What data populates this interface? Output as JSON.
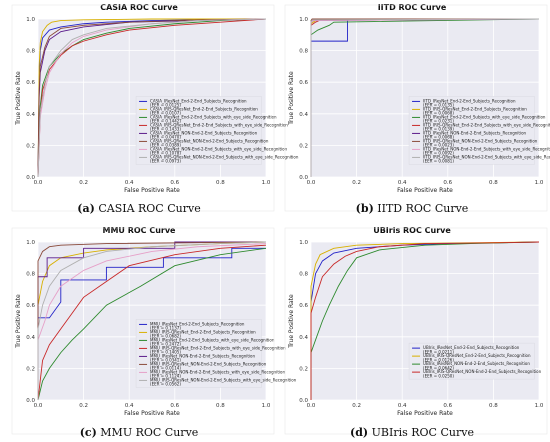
{
  "colors": [
    "#2323c8",
    "#d8b000",
    "#2e8a2e",
    "#c82828",
    "#5a1a8a",
    "#8a4a3a",
    "#e6a0c8",
    "#b0b0b0"
  ],
  "charts": [
    {
      "id": "a",
      "title": "CASIA ROC Curve",
      "xlabel": "False Positive Rate",
      "ylabel": "True Positive Rate",
      "caption_tag": "(a)",
      "caption_text": "CASIA ROC Curve",
      "legend": [
        [
          "CASIA_IResNet_End-2-End_Subjects_Recognition",
          "(EER = 0.0125)"
        ],
        [
          "CASIA_IRIS-QResNet_End-2-End_Subjects_Recognition",
          "(EER = 0.0107)"
        ],
        [
          "CASIA_IResNet_End-2-End_Subjects_with_eye_side_Recognition",
          "(EER = 0.1442)"
        ],
        [
          "CASIA_IRIS-QResNet_End-2-End_Subjects_with_eye_side_Recognition",
          "(EER = 0.1433)"
        ],
        [
          "CASIA_IResNet_NON-End-2-End_Subjects_Recognition",
          "(EER = 0.0470)"
        ],
        [
          "CASIA_IRIS-QResNet_NON-End-2-End_Subjects_Recognition",
          "(EER = 0.0389)"
        ],
        [
          "CASIA_IResNet_NON-End-2-End_Subjects_with_eye_side_Recognition",
          "(EER = 0.1078)"
        ],
        [
          "CASIA_IRIS-QResNet_NON-End-2-End_Subjects_with_eye_side_Recognition",
          "(EER = 0.0973)"
        ]
      ]
    },
    {
      "id": "b",
      "title": "IITD ROC Curve",
      "xlabel": "False Positive Rate",
      "ylabel": "True Positive Rate",
      "caption_tag": "(b)",
      "caption_text": "IITD ROC Curve",
      "legend": [
        [
          "IITD_IResNet_End-2-End_Subjects_Recognition",
          "(EER = 0.0135)"
        ],
        [
          "IITD_IRIS-QResNet_End-2-End_Subjects_Recognition",
          "(EER = 0.0068)"
        ],
        [
          "IITD_IResNet_End-2-End_Subjects_with_eye_side_Recognition",
          "(EER = 0.0231)"
        ],
        [
          "IITD_IRIS-QResNet_End-2-End_Subjects_with_eye_side_Recognition",
          "(EER = 0.0139)"
        ],
        [
          "IITD_IResNet_NON-End-2-End_Subjects_Recognition",
          "(EER = 0.0068)"
        ],
        [
          "IITD_IRIS-QResNet_NON-End-2-End_Subjects_Recognition",
          "(EER = 0.0023)"
        ],
        [
          "IITD_IResNet_NON-End-2-End_Subjects_with_eye_side_Recognition",
          "(EER = 0.0092)"
        ],
        [
          "IITD_IRIS-QResNet_NON-End-2-End_Subjects_with_eye_side_Recognition",
          "(EER = 0.0081)"
        ]
      ]
    },
    {
      "id": "c",
      "title": "MMU ROC Curve",
      "xlabel": "False Positive Rate",
      "ylabel": "True Positive Rate",
      "caption_tag": "(c)",
      "caption_text": "MMU ROC Curve",
      "legend": [
        [
          "MMU_IResNet_End-2-End_Subjects_Recognition",
          "(EER = 0.1137)"
        ],
        [
          "MMU_IRIS-QResNet_End-2-End_Subjects_Recognition",
          "(EER = 0.0682)"
        ],
        [
          "MMU_IResNet_End-2-End_Subjects_with_eye_side_Recognition",
          "(EER = 0.2472)"
        ],
        [
          "MMU_IRIS-QResNet_End-2-End_Subjects_with_eye_side_Recognition",
          "(EER = 0.1405)"
        ],
        [
          "MMU_IResNet_NON-End-2-End_Subjects_Recognition",
          "(EER = 0.0341)"
        ],
        [
          "MMU_IRIS-QResNet_NON-End-2-End_Subjects_Recognition",
          "(EER = 0.0114)"
        ],
        [
          "MMU_IResNet_NON-End-2-End_Subjects_with_eye_side_Recognition",
          "(EER = 0.1124)"
        ],
        [
          "MMU_IRIS-QResNet_NON-End-2-End_Subjects_with_eye_side_Recognition",
          "(EER = 0.0562)"
        ]
      ]
    },
    {
      "id": "d",
      "title": "UBIris ROC Curve",
      "xlabel": "False Positive Rate",
      "ylabel": "True Positive Rate",
      "caption_tag": "(d)",
      "caption_text": "UBIris ROC Curve",
      "legend": [
        [
          "UBIris_IResNet_End-2-End_Subjects_Recognition",
          "(EER = 0.0211)"
        ],
        [
          "UBIris_IRIS-QResNet_End-2-End_Subjects_Recognition",
          "(EER = 0.0126)"
        ],
        [
          "UBIris_IResNet_NON-End-2-End_Subjects_Recognition",
          "(EER = 0.0642)"
        ],
        [
          "UBIris_IRIS-QResNet_NON-End-2-End_Subjects_Recognition",
          "(EER = 0.0250)"
        ]
      ]
    }
  ],
  "chart_data": [
    {
      "type": "line",
      "title": "CASIA ROC Curve",
      "xlabel": "False Positive Rate",
      "ylabel": "True Positive Rate",
      "xlim": [
        0,
        1
      ],
      "ylim": [
        0,
        1
      ],
      "xticks": [
        "0.0",
        "0.2",
        "0.4",
        "0.6",
        "0.8",
        "1.0"
      ],
      "yticks": [
        "0.0",
        "0.2",
        "0.4",
        "0.6",
        "0.8",
        "1.0"
      ],
      "grid": true,
      "legend_position": "center-right",
      "series": [
        {
          "name": "CASIA_IResNet_End-2-End_Subjects_Recognition (EER = 0.0125)",
          "x": [
            0,
            0.005,
            0.01,
            0.02,
            0.05,
            0.1,
            0.2,
            0.3,
            0.5,
            0.7,
            1.0
          ],
          "y": [
            0,
            0.6,
            0.8,
            0.88,
            0.93,
            0.95,
            0.97,
            0.98,
            0.99,
            0.995,
            1.0
          ]
        },
        {
          "name": "CASIA_IRIS-QResNet_End-2-End_Subjects_Recognition (EER = 0.0107)",
          "x": [
            0,
            0.005,
            0.01,
            0.02,
            0.04,
            0.06,
            0.1,
            0.2,
            0.5,
            1.0
          ],
          "y": [
            0,
            0.7,
            0.85,
            0.92,
            0.96,
            0.98,
            0.99,
            0.995,
            1.0,
            1.0
          ]
        },
        {
          "name": "CASIA_IResNet_End-2-End_Subjects_with_eye_side_Recognition (EER = 0.1442)",
          "x": [
            0,
            0.01,
            0.02,
            0.05,
            0.1,
            0.15,
            0.2,
            0.3,
            0.4,
            0.6,
            0.8,
            1.0
          ],
          "y": [
            0,
            0.45,
            0.58,
            0.7,
            0.78,
            0.83,
            0.87,
            0.91,
            0.94,
            0.97,
            0.99,
            1.0
          ]
        },
        {
          "name": "CASIA_IRIS-QResNet_End-2-End_Subjects_with_eye_side_Recognition (EER = 0.1433)",
          "x": [
            0,
            0.01,
            0.02,
            0.05,
            0.1,
            0.15,
            0.2,
            0.3,
            0.4,
            0.6,
            0.8,
            1.0
          ],
          "y": [
            0,
            0.4,
            0.55,
            0.68,
            0.77,
            0.83,
            0.86,
            0.9,
            0.93,
            0.96,
            0.98,
            1.0
          ]
        },
        {
          "name": "CASIA_IResNet_NON-End-2-End_Subjects_Recognition (EER = 0.0470)",
          "x": [
            0,
            0.005,
            0.01,
            0.03,
            0.05,
            0.1,
            0.2,
            0.4,
            0.7,
            1.0
          ],
          "y": [
            0,
            0.5,
            0.66,
            0.8,
            0.87,
            0.92,
            0.95,
            0.98,
            0.99,
            1.0
          ]
        },
        {
          "name": "CASIA_IRIS-QResNet_NON-End-2-End_Subjects_Recognition (EER = 0.0389)",
          "x": [
            0,
            0.005,
            0.01,
            0.03,
            0.05,
            0.1,
            0.2,
            0.4,
            0.7,
            1.0
          ],
          "y": [
            0,
            0.55,
            0.7,
            0.82,
            0.89,
            0.94,
            0.96,
            0.98,
            0.995,
            1.0
          ]
        },
        {
          "name": "CASIA_IResNet_NON-End-2-End_Subjects_with_eye_side_Recognition (EER = 0.1078)",
          "x": [
            0,
            0.01,
            0.03,
            0.05,
            0.1,
            0.15,
            0.2,
            0.3,
            0.5,
            0.7,
            1.0
          ],
          "y": [
            0,
            0.38,
            0.55,
            0.66,
            0.78,
            0.85,
            0.89,
            0.93,
            0.97,
            0.99,
            1.0
          ]
        },
        {
          "name": "CASIA_IRIS-QResNet_NON-End-2-End_Subjects_with_eye_side_Recognition (EER = 0.0973)",
          "x": [
            0,
            0.01,
            0.03,
            0.05,
            0.1,
            0.15,
            0.2,
            0.3,
            0.5,
            0.7,
            1.0
          ],
          "y": [
            0,
            0.42,
            0.58,
            0.7,
            0.8,
            0.87,
            0.9,
            0.94,
            0.97,
            0.99,
            1.0
          ]
        }
      ]
    },
    {
      "type": "line",
      "title": "IITD ROC Curve",
      "xlabel": "False Positive Rate",
      "ylabel": "True Positive Rate",
      "xlim": [
        0,
        1
      ],
      "ylim": [
        0,
        1
      ],
      "xticks": [
        "0.0",
        "0.2",
        "0.4",
        "0.6",
        "0.8",
        "1.0"
      ],
      "yticks": [
        "0.0",
        "0.2",
        "0.4",
        "0.6",
        "0.8",
        "1.0"
      ],
      "grid": true,
      "legend_position": "center-right",
      "series": [
        {
          "name": "IITD_IResNet_End-2-End_Subjects_Recognition (EER = 0.0135)",
          "x": [
            0,
            0.0,
            0.16,
            0.16,
            1.0
          ],
          "y": [
            0,
            0.86,
            0.86,
            1.0,
            1.0
          ]
        },
        {
          "name": "IITD_IRIS-QResNet_End-2-End_Subjects_Recognition (EER = 0.0068)",
          "x": [
            0,
            0.0,
            0.02,
            0.05,
            1.0
          ],
          "y": [
            0,
            0.97,
            0.99,
            1.0,
            1.0
          ]
        },
        {
          "name": "IITD_IResNet_End-2-End_Subjects_with_eye_side_Recognition (EER = 0.0231)",
          "x": [
            0,
            0.0,
            0.03,
            0.08,
            0.1,
            1.0
          ],
          "y": [
            0,
            0.9,
            0.93,
            0.96,
            0.98,
            1.0
          ]
        },
        {
          "name": "IITD_IRIS-QResNet_End-2-End_Subjects_with_eye_side_Recognition (EER = 0.0139)",
          "x": [
            0,
            0.0,
            0.02,
            0.05,
            1.0
          ],
          "y": [
            0,
            0.96,
            0.98,
            1.0,
            1.0
          ]
        },
        {
          "name": "IITD_IResNet_NON-End-2-End_Subjects_Recognition (EER = 0.0068)",
          "x": [
            0,
            0.0,
            0.01,
            1.0
          ],
          "y": [
            0,
            0.98,
            0.99,
            1.0
          ]
        },
        {
          "name": "IITD_IRIS-QResNet_NON-End-2-End_Subjects_Recognition (EER = 0.0023)",
          "x": [
            0,
            0.0,
            0.005,
            1.0
          ],
          "y": [
            0,
            0.99,
            1.0,
            1.0
          ]
        },
        {
          "name": "IITD_IResNet_NON-End-2-End_Subjects_with_eye_side_Recognition (EER = 0.0092)",
          "x": [
            0,
            0.0,
            0.01,
            1.0
          ],
          "y": [
            0,
            0.98,
            0.99,
            1.0
          ]
        },
        {
          "name": "IITD_IRIS-QResNet_NON-End-2-End_Subjects_with_eye_side_Recognition (EER = 0.0081)",
          "x": [
            0,
            0.0,
            0.01,
            1.0
          ],
          "y": [
            0,
            0.985,
            0.995,
            1.0
          ]
        }
      ]
    },
    {
      "type": "line",
      "title": "MMU ROC Curve",
      "xlabel": "False Positive Rate",
      "ylabel": "True Positive Rate",
      "xlim": [
        0,
        1
      ],
      "ylim": [
        0,
        1
      ],
      "xticks": [
        "0.0",
        "0.2",
        "0.4",
        "0.6",
        "0.8",
        "1.0"
      ],
      "yticks": [
        "0.0",
        "0.2",
        "0.4",
        "0.6",
        "0.8",
        "1.0"
      ],
      "grid": true,
      "legend_position": "center-right",
      "series": [
        {
          "name": "MMU_IResNet_End-2-End_Subjects_Recognition (EER = 0.1137)",
          "x": [
            0,
            0.0,
            0.05,
            0.1,
            0.1,
            0.3,
            0.3,
            0.55,
            0.55,
            0.85,
            0.85,
            1.0
          ],
          "y": [
            0,
            0.52,
            0.52,
            0.62,
            0.76,
            0.76,
            0.84,
            0.84,
            0.9,
            0.9,
            0.96,
            0.96
          ]
        },
        {
          "name": "MMU_IRIS-QResNet_End-2-End_Subjects_Recognition (EER = 0.0682)",
          "x": [
            0,
            0.0,
            0.02,
            0.05,
            0.1,
            0.2,
            0.3,
            0.5,
            0.8,
            1.0
          ],
          "y": [
            0,
            0.6,
            0.75,
            0.85,
            0.9,
            0.93,
            0.95,
            0.97,
            0.99,
            1.0
          ]
        },
        {
          "name": "MMU_IResNet_End-2-End_Subjects_with_eye_side_Recognition (EER = 0.2472)",
          "x": [
            0,
            0.02,
            0.05,
            0.1,
            0.15,
            0.2,
            0.3,
            0.45,
            0.6,
            0.8,
            1.0
          ],
          "y": [
            0,
            0.12,
            0.2,
            0.3,
            0.38,
            0.45,
            0.6,
            0.72,
            0.85,
            0.92,
            0.96
          ]
        },
        {
          "name": "MMU_IRIS-QResNet_End-2-End_Subjects_with_eye_side_Recognition (EER = 0.1405)",
          "x": [
            0,
            0.02,
            0.05,
            0.1,
            0.15,
            0.2,
            0.3,
            0.4,
            0.6,
            0.8,
            1.0
          ],
          "y": [
            0,
            0.25,
            0.35,
            0.45,
            0.55,
            0.65,
            0.75,
            0.85,
            0.92,
            0.96,
            0.98
          ]
        },
        {
          "name": "MMU_IResNet_NON-End-2-End_Subjects_Recognition (EER = 0.0341)",
          "x": [
            0,
            0.0,
            0.04,
            0.04,
            0.2,
            0.2,
            0.6,
            0.6,
            1.0
          ],
          "y": [
            0,
            0.78,
            0.78,
            0.9,
            0.9,
            0.96,
            0.96,
            1.0,
            1.0
          ]
        },
        {
          "name": "MMU_IRIS-QResNet_NON-End-2-End_Subjects_Recognition (EER = 0.0114)",
          "x": [
            0,
            0.0,
            0.02,
            0.05,
            0.1,
            0.3,
            1.0
          ],
          "y": [
            0,
            0.88,
            0.94,
            0.97,
            0.98,
            0.99,
            1.0
          ]
        },
        {
          "name": "MMU_IResNet_NON-End-2-End_Subjects_with_eye_side_Recognition (EER = 0.1124)",
          "x": [
            0,
            0.0,
            0.03,
            0.05,
            0.1,
            0.2,
            0.3,
            0.5,
            0.7,
            1.0
          ],
          "y": [
            0,
            0.38,
            0.5,
            0.6,
            0.72,
            0.82,
            0.88,
            0.94,
            0.97,
            0.99
          ]
        },
        {
          "name": "MMU_IRIS-QResNet_NON-End-2-End_Subjects_with_eye_side_Recognition (EER = 0.0562)",
          "x": [
            0,
            0.0,
            0.02,
            0.05,
            0.1,
            0.2,
            0.3,
            0.5,
            0.8,
            1.0
          ],
          "y": [
            0,
            0.45,
            0.6,
            0.72,
            0.82,
            0.9,
            0.94,
            0.97,
            0.99,
            1.0
          ]
        }
      ]
    },
    {
      "type": "line",
      "title": "UBIris ROC Curve",
      "xlabel": "False Positive Rate",
      "ylabel": "True Positive Rate",
      "xlim": [
        0,
        1
      ],
      "ylim": [
        0,
        1
      ],
      "xticks": [
        "0.0",
        "0.2",
        "0.4",
        "0.6",
        "0.8",
        "1.0"
      ],
      "yticks": [
        "0.0",
        "0.2",
        "0.4",
        "0.6",
        "0.8",
        "1.0"
      ],
      "grid": true,
      "legend_position": "center-right",
      "series": [
        {
          "name": "UBIris_IResNet_End-2-End_Subjects_Recognition (EER = 0.0211)",
          "x": [
            0,
            0.0,
            0.02,
            0.05,
            0.1,
            0.2,
            0.4,
            0.6,
            0.8,
            1.0
          ],
          "y": [
            0,
            0.62,
            0.8,
            0.88,
            0.93,
            0.96,
            0.98,
            0.99,
            0.995,
            1.0
          ]
        },
        {
          "name": "UBIris_IRIS-QResNet_End-2-End_Subjects_Recognition (EER = 0.0126)",
          "x": [
            0,
            0.0,
            0.02,
            0.04,
            0.1,
            0.2,
            0.4,
            0.7,
            1.0
          ],
          "y": [
            0,
            0.72,
            0.86,
            0.92,
            0.96,
            0.98,
            0.99,
            0.995,
            1.0
          ]
        },
        {
          "name": "UBIris_IResNet_NON-End-2-End_Subjects_Recognition (EER = 0.0642)",
          "x": [
            0,
            0.0,
            0.02,
            0.05,
            0.08,
            0.12,
            0.16,
            0.2,
            0.3,
            0.5,
            0.7,
            1.0
          ],
          "y": [
            0,
            0.3,
            0.38,
            0.5,
            0.6,
            0.72,
            0.82,
            0.9,
            0.95,
            0.98,
            0.99,
            1.0
          ]
        },
        {
          "name": "UBIris_IRIS-QResNet_NON-End-2-End_Subjects_Recognition (EER = 0.0250)",
          "x": [
            0,
            0.0,
            0.02,
            0.05,
            0.1,
            0.15,
            0.2,
            0.3,
            0.5,
            0.8,
            1.0
          ],
          "y": [
            0,
            0.55,
            0.65,
            0.78,
            0.86,
            0.91,
            0.94,
            0.97,
            0.99,
            0.995,
            1.0
          ]
        }
      ]
    }
  ]
}
